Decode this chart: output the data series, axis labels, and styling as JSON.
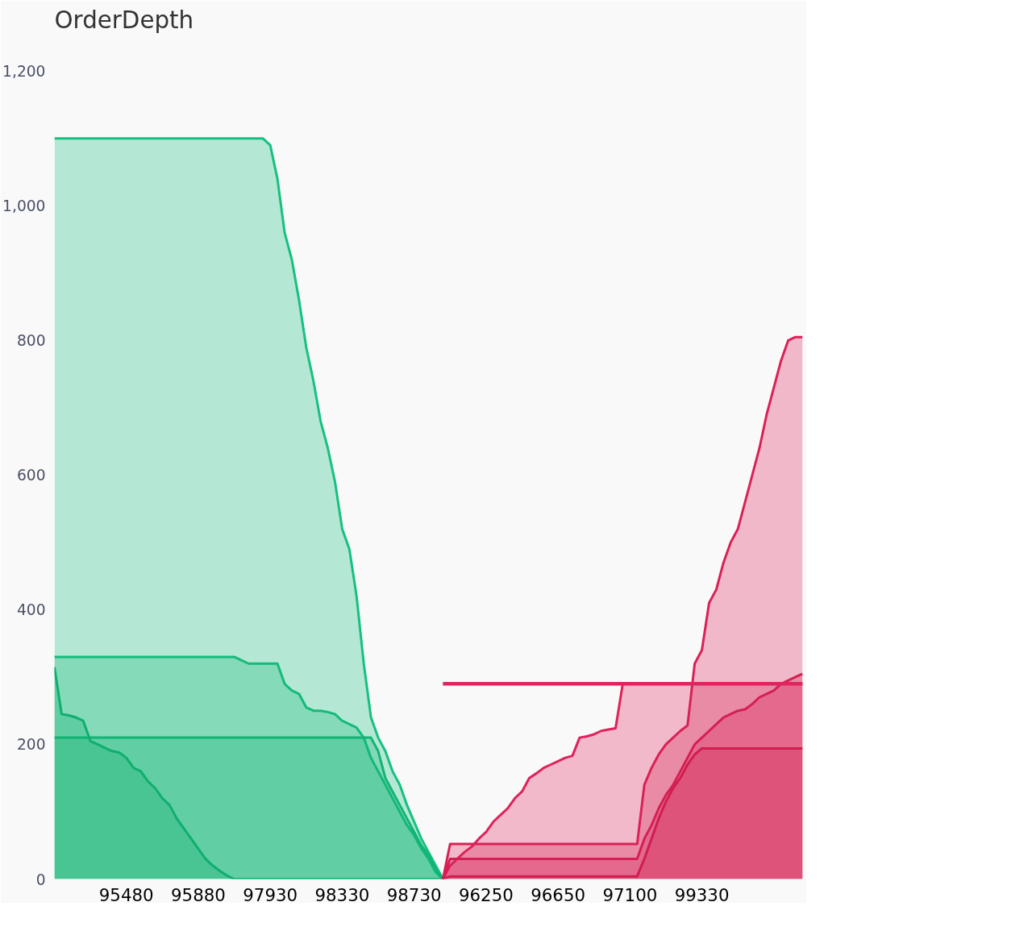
{
  "chart_data": {
    "type": "area",
    "title": "OrderDepth",
    "categories": [
      null,
      null,
      null,
      null,
      null,
      null,
      null,
      null,
      null,
      null,
      "95480",
      null,
      null,
      null,
      null,
      null,
      null,
      null,
      null,
      null,
      "95880",
      null,
      null,
      null,
      null,
      null,
      null,
      null,
      null,
      null,
      "97930",
      null,
      null,
      null,
      null,
      null,
      null,
      null,
      null,
      null,
      "98330",
      null,
      null,
      null,
      null,
      null,
      null,
      null,
      null,
      null,
      "98730",
      null,
      null,
      null,
      null,
      null,
      null,
      null,
      null,
      null,
      "96250",
      null,
      null,
      null,
      null,
      null,
      null,
      null,
      null,
      null,
      "96650",
      null,
      null,
      null,
      null,
      null,
      null,
      null,
      null,
      null,
      "97100",
      null,
      null,
      null,
      null,
      null,
      null,
      null,
      null,
      null,
      "99330",
      null,
      null,
      null,
      null,
      null,
      null,
      null,
      null,
      null,
      null,
      null,
      null,
      null,
      null
    ],
    "ylim": [
      0,
      1250
    ],
    "yticks": [
      0,
      200,
      400,
      600,
      800,
      {
        "value": 1000,
        "label": "1,000"
      },
      {
        "value": 1200,
        "label": "1,200"
      }
    ],
    "grid": false,
    "series": [
      {
        "color": "#16c07f",
        "values": [
          1100,
          1100,
          1100,
          1100,
          1100,
          1100,
          1100,
          1100,
          1100,
          1100,
          1100,
          1100,
          1100,
          1100,
          1100,
          1100,
          1100,
          1100,
          1100,
          1100,
          1100,
          1100,
          1100,
          1100,
          1100,
          1100,
          1100,
          1100,
          1100,
          1100,
          1090,
          1040,
          960,
          920,
          860,
          790,
          740,
          680,
          640,
          590,
          520,
          490,
          420,
          320,
          240,
          210,
          190,
          160,
          140,
          110,
          85,
          60,
          40,
          20,
          0,
          null,
          null,
          null,
          null,
          null,
          null,
          null,
          null,
          null,
          null,
          null,
          null,
          null,
          null,
          null,
          null,
          null,
          null,
          null,
          null,
          null,
          null,
          null,
          null,
          null,
          null,
          null,
          null,
          null,
          null,
          null,
          null,
          null,
          null,
          null,
          null,
          null,
          null,
          null,
          null,
          null,
          null,
          null,
          null,
          null,
          null,
          null,
          null,
          null,
          null
        ]
      },
      {
        "color": "#14ba7a",
        "values": [
          330,
          330,
          330,
          330,
          330,
          330,
          330,
          330,
          330,
          330,
          330,
          330,
          330,
          330,
          330,
          330,
          330,
          330,
          330,
          330,
          330,
          330,
          330,
          330,
          330,
          330,
          325,
          320,
          320,
          320,
          320,
          320,
          290,
          280,
          275,
          255,
          250,
          250,
          248,
          245,
          235,
          230,
          225,
          210,
          180,
          160,
          140,
          120,
          100,
          80,
          65,
          45,
          30,
          10,
          0,
          null,
          null,
          null,
          null,
          null,
          null,
          null,
          null,
          null,
          null,
          null,
          null,
          null,
          null,
          null,
          null,
          null,
          null,
          null,
          null,
          null,
          null,
          null,
          null,
          null,
          null,
          null,
          null,
          null,
          null,
          null,
          null,
          null,
          null,
          null,
          null,
          null,
          null,
          null,
          null,
          null,
          null,
          null,
          null,
          null,
          null,
          null,
          null,
          null,
          null
        ]
      },
      {
        "color": "#12b474",
        "values": [
          210,
          210,
          210,
          210,
          210,
          210,
          210,
          210,
          210,
          210,
          210,
          210,
          210,
          210,
          210,
          210,
          210,
          210,
          210,
          210,
          210,
          210,
          210,
          210,
          210,
          210,
          210,
          210,
          210,
          210,
          210,
          210,
          210,
          210,
          210,
          210,
          210,
          210,
          210,
          210,
          210,
          210,
          210,
          210,
          210,
          190,
          150,
          130,
          110,
          90,
          70,
          50,
          35,
          15,
          0,
          null,
          null,
          null,
          null,
          null,
          null,
          null,
          null,
          null,
          null,
          null,
          null,
          null,
          null,
          null,
          null,
          null,
          null,
          null,
          null,
          null,
          null,
          null,
          null,
          null,
          null,
          null,
          null,
          null,
          null,
          null,
          null,
          null,
          null,
          null,
          null,
          null,
          null,
          null,
          null,
          null,
          null,
          null,
          null,
          null,
          null,
          null,
          null,
          null,
          null
        ]
      },
      {
        "color": "#10ae6e",
        "values": [
          315,
          245,
          243,
          240,
          235,
          205,
          200,
          195,
          190,
          188,
          180,
          165,
          160,
          145,
          135,
          120,
          110,
          90,
          75,
          60,
          45,
          30,
          20,
          12,
          5,
          0,
          0,
          0,
          0,
          0,
          0,
          0,
          0,
          0,
          0,
          0,
          0,
          0,
          0,
          0,
          0,
          0,
          0,
          0,
          0,
          0,
          0,
          0,
          0,
          0,
          0,
          0,
          0,
          0,
          0,
          null,
          null,
          null,
          null,
          null,
          null,
          null,
          null,
          null,
          null,
          null,
          null,
          null,
          null,
          null,
          null,
          null,
          null,
          null,
          null,
          null,
          null,
          null,
          null,
          null,
          null,
          null,
          null,
          null,
          null,
          null,
          null,
          null,
          null,
          null,
          null,
          null,
          null,
          null,
          null,
          null,
          null,
          null,
          null,
          null,
          null,
          null,
          null,
          null,
          null
        ]
      },
      {
        "type": "line",
        "color": "#e0245e",
        "values": [
          null,
          null,
          null,
          null,
          null,
          null,
          null,
          null,
          null,
          null,
          null,
          null,
          null,
          null,
          null,
          null,
          null,
          null,
          null,
          null,
          null,
          null,
          null,
          null,
          null,
          null,
          null,
          null,
          null,
          null,
          null,
          null,
          null,
          null,
          null,
          null,
          null,
          null,
          null,
          null,
          null,
          null,
          null,
          null,
          null,
          null,
          null,
          null,
          null,
          null,
          null,
          null,
          null,
          null,
          290,
          290,
          290,
          290,
          290,
          290,
          290,
          290,
          290,
          290,
          290,
          290,
          290,
          290,
          290,
          290,
          290,
          290,
          290,
          290,
          290,
          290,
          290,
          290,
          290,
          290,
          290,
          290,
          290,
          290,
          290,
          290,
          290,
          290,
          290,
          290,
          290,
          290,
          290,
          290,
          290,
          290,
          290,
          290,
          290,
          290,
          290,
          290,
          290,
          290,
          290
        ]
      },
      {
        "color": "#dd235b",
        "values": [
          null,
          null,
          null,
          null,
          null,
          null,
          null,
          null,
          null,
          null,
          null,
          null,
          null,
          null,
          null,
          null,
          null,
          null,
          null,
          null,
          null,
          null,
          null,
          null,
          null,
          null,
          null,
          null,
          null,
          null,
          null,
          null,
          null,
          null,
          null,
          null,
          null,
          null,
          null,
          null,
          null,
          null,
          null,
          null,
          null,
          null,
          null,
          null,
          null,
          null,
          null,
          null,
          null,
          null,
          0,
          20,
          30,
          40,
          48,
          60,
          70,
          85,
          95,
          105,
          120,
          130,
          150,
          157,
          165,
          170,
          175,
          180,
          183,
          210,
          212,
          215,
          220,
          222,
          224,
          290,
          290,
          290,
          290,
          290,
          290,
          290,
          290,
          290,
          290,
          290,
          290,
          290,
          290,
          290,
          290,
          290,
          290,
          290,
          290,
          290,
          290,
          290,
          290,
          290,
          290
        ]
      },
      {
        "color": "#d92157",
        "values": [
          null,
          null,
          null,
          null,
          null,
          null,
          null,
          null,
          null,
          null,
          null,
          null,
          null,
          null,
          null,
          null,
          null,
          null,
          null,
          null,
          null,
          null,
          null,
          null,
          null,
          null,
          null,
          null,
          null,
          null,
          null,
          null,
          null,
          null,
          null,
          null,
          null,
          null,
          null,
          null,
          null,
          null,
          null,
          null,
          null,
          null,
          null,
          null,
          null,
          null,
          null,
          null,
          null,
          null,
          0,
          52,
          52,
          52,
          52,
          52,
          52,
          52,
          52,
          52,
          52,
          52,
          52,
          52,
          52,
          52,
          52,
          52,
          52,
          52,
          52,
          52,
          52,
          52,
          52,
          52,
          52,
          52,
          140,
          165,
          185,
          200,
          210,
          220,
          228,
          320,
          340,
          410,
          430,
          470,
          500,
          520,
          560,
          600,
          640,
          690,
          730,
          770,
          800,
          805,
          805
        ]
      },
      {
        "color": "#d51f53",
        "values": [
          null,
          null,
          null,
          null,
          null,
          null,
          null,
          null,
          null,
          null,
          null,
          null,
          null,
          null,
          null,
          null,
          null,
          null,
          null,
          null,
          null,
          null,
          null,
          null,
          null,
          null,
          null,
          null,
          null,
          null,
          null,
          null,
          null,
          null,
          null,
          null,
          null,
          null,
          null,
          null,
          null,
          null,
          null,
          null,
          null,
          null,
          null,
          null,
          null,
          null,
          null,
          null,
          null,
          null,
          0,
          30,
          30,
          30,
          30,
          30,
          30,
          30,
          30,
          30,
          30,
          30,
          30,
          30,
          30,
          30,
          30,
          30,
          30,
          30,
          30,
          30,
          30,
          30,
          30,
          30,
          30,
          30,
          60,
          80,
          105,
          125,
          140,
          160,
          180,
          200,
          210,
          220,
          230,
          240,
          245,
          250,
          252,
          260,
          270,
          275,
          280,
          290,
          295,
          300,
          305
        ]
      },
      {
        "color": "#d11d4f",
        "values": [
          null,
          null,
          null,
          null,
          null,
          null,
          null,
          null,
          null,
          null,
          null,
          null,
          null,
          null,
          null,
          null,
          null,
          null,
          null,
          null,
          null,
          null,
          null,
          null,
          null,
          null,
          null,
          null,
          null,
          null,
          null,
          null,
          null,
          null,
          null,
          null,
          null,
          null,
          null,
          null,
          null,
          null,
          null,
          null,
          null,
          null,
          null,
          null,
          null,
          null,
          null,
          null,
          null,
          null,
          0,
          4,
          4,
          4,
          4,
          4,
          4,
          4,
          4,
          4,
          4,
          4,
          4,
          4,
          4,
          4,
          4,
          4,
          4,
          4,
          4,
          4,
          4,
          4,
          4,
          4,
          4,
          4,
          30,
          60,
          90,
          115,
          135,
          150,
          170,
          185,
          194,
          194,
          194,
          194,
          194,
          194,
          194,
          194,
          194,
          194,
          194,
          194,
          194,
          194,
          194
        ]
      }
    ]
  }
}
